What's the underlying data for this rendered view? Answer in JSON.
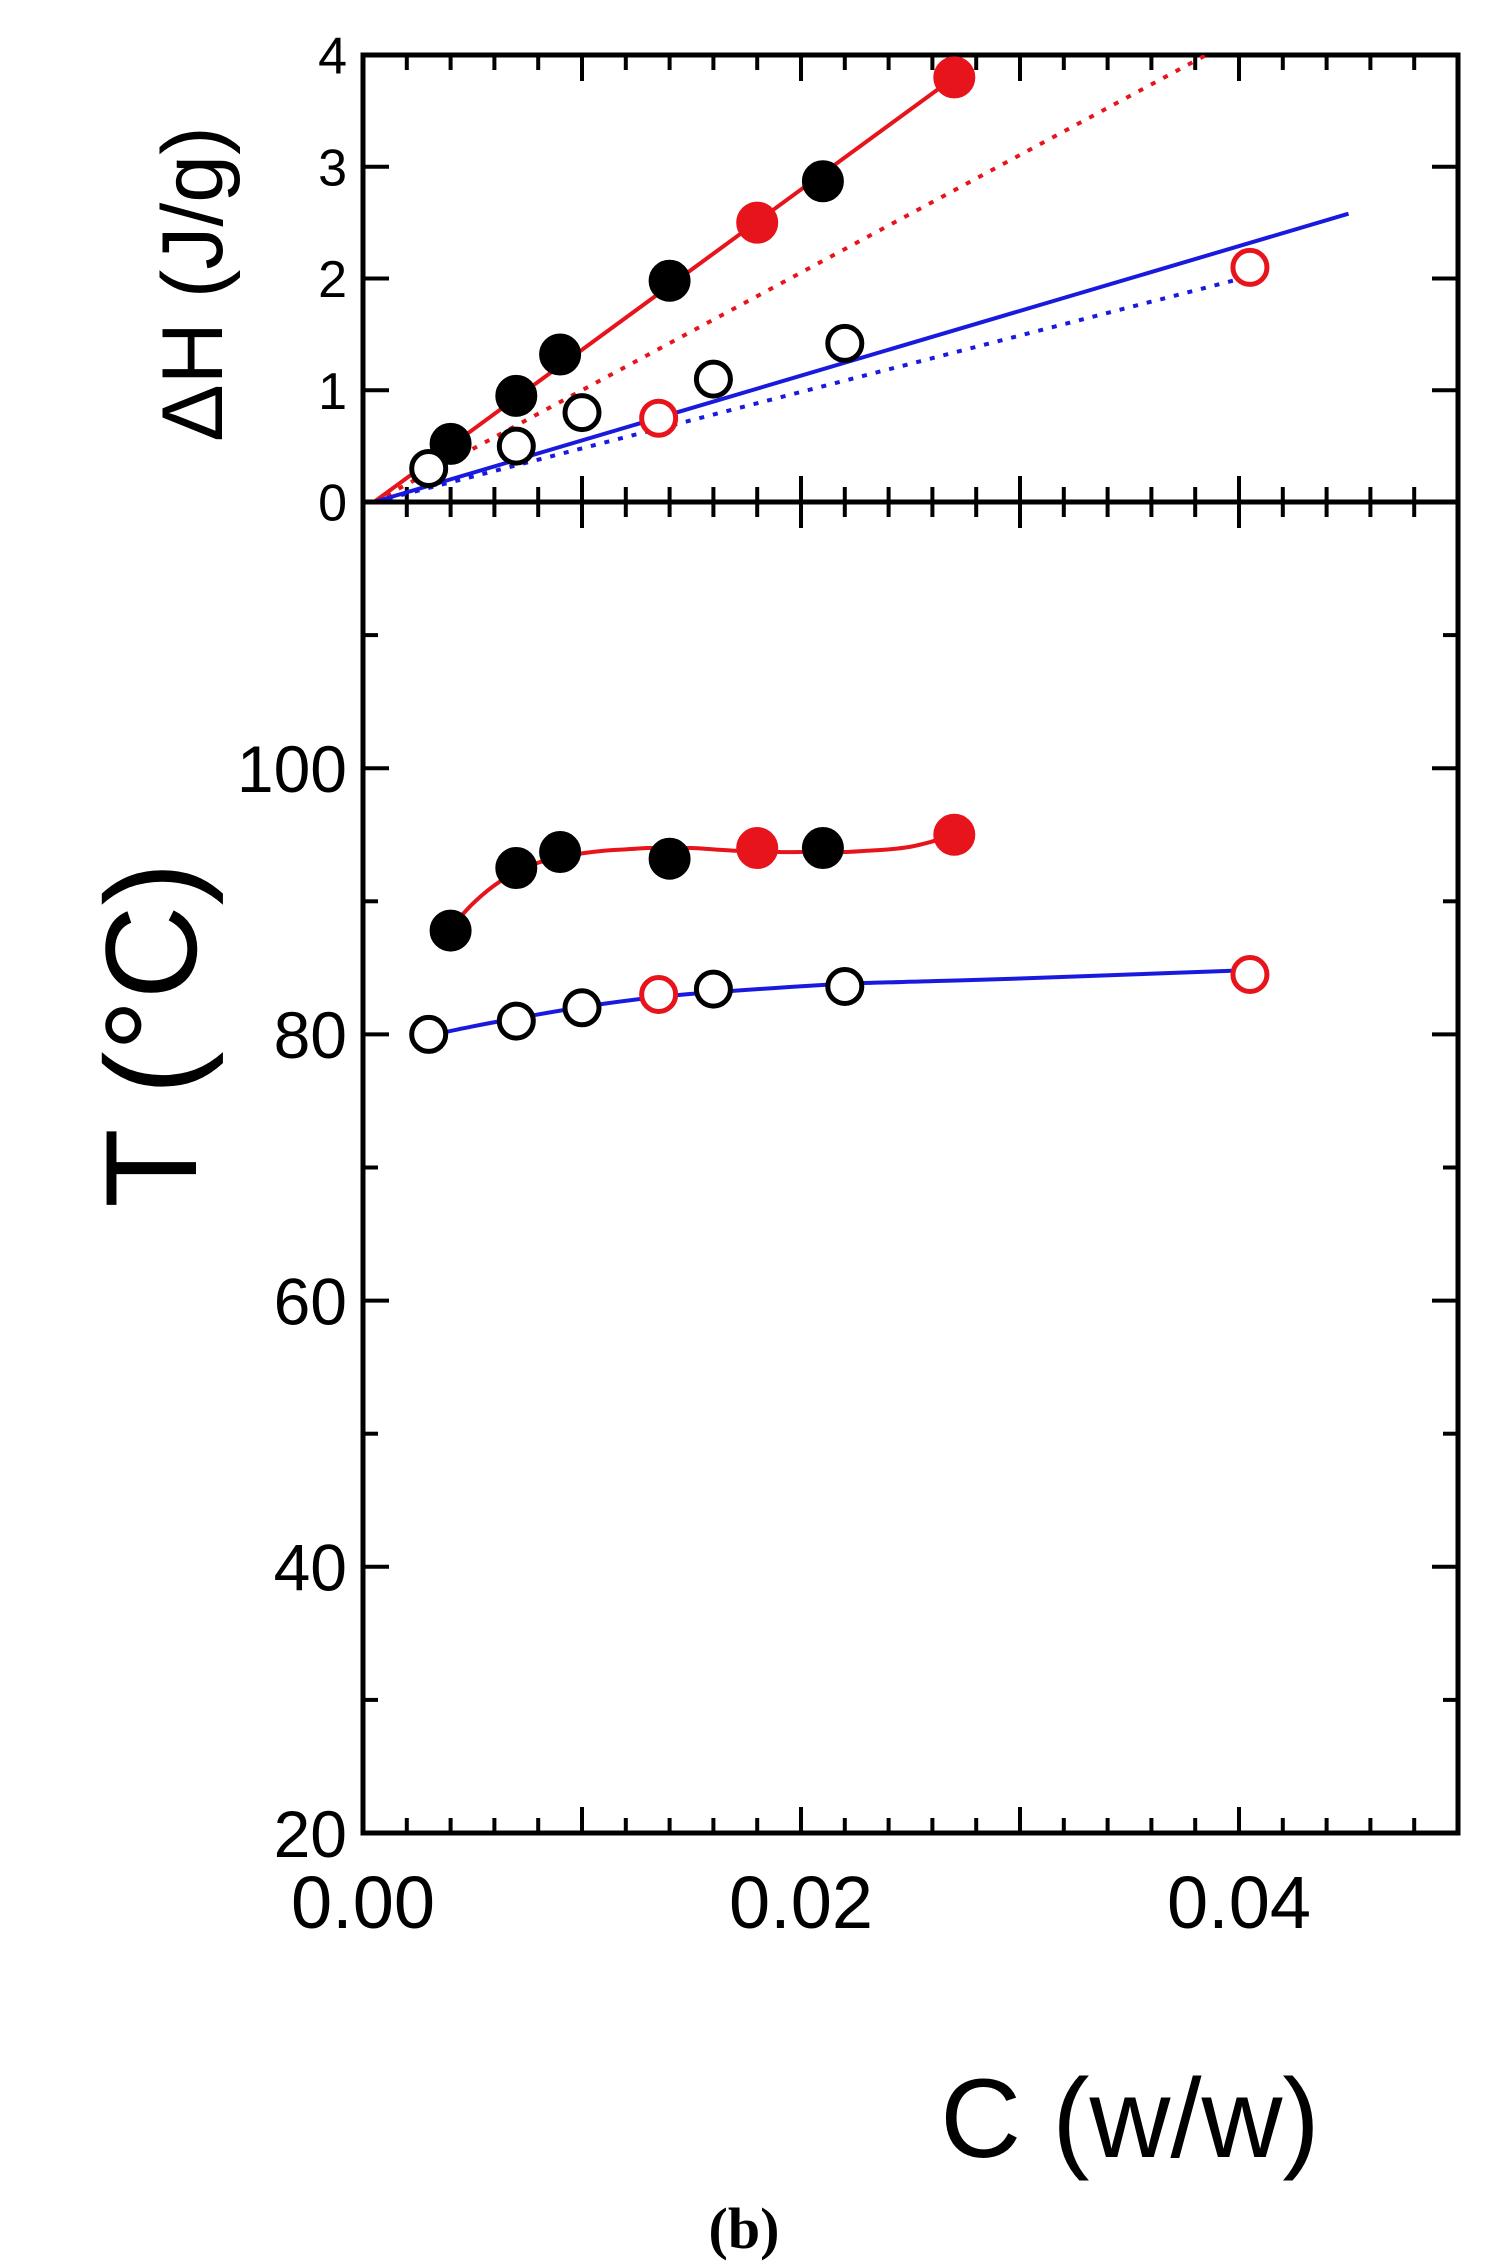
{
  "colors": {
    "black": "#000000",
    "red": "#e8141c",
    "blue": "#1a1adf",
    "marker_red": "#e8141c"
  },
  "chart_data": [
    {
      "type": "scatter",
      "panel": "top",
      "xlabel": "",
      "ylabel": "ΔH (J/g)",
      "xlim": [
        0,
        0.05
      ],
      "ylim": [
        0,
        4
      ],
      "yticks": [
        "0",
        "1",
        "2",
        "3",
        "4"
      ],
      "series": [
        {
          "name": "filled-black",
          "marker": "filled",
          "color": "#000000",
          "x": [
            0.004,
            0.007,
            0.009,
            0.014,
            0.021
          ],
          "y": [
            0.52,
            0.95,
            1.32,
            1.98,
            2.87
          ]
        },
        {
          "name": "filled-red",
          "marker": "filled",
          "color": "#e8141c",
          "x": [
            0.018,
            0.027
          ],
          "y": [
            2.5,
            3.8
          ]
        },
        {
          "name": "open-black",
          "marker": "open",
          "color": "#000000",
          "x": [
            0.003,
            0.007,
            0.01,
            0.016,
            0.022
          ],
          "y": [
            0.3,
            0.5,
            0.8,
            1.1,
            1.42
          ]
        },
        {
          "name": "open-red",
          "marker": "open",
          "color": "#e8141c",
          "x": [
            0.0135,
            0.0405
          ],
          "y": [
            0.75,
            2.1
          ]
        }
      ],
      "lines": [
        {
          "name": "red-solid-fit",
          "color": "#e8141c",
          "style": "solid",
          "x": [
            0.0005,
            0.027
          ],
          "y": [
            0.0,
            3.8
          ]
        },
        {
          "name": "red-dotted-fit",
          "color": "#e8141c",
          "style": "dotted",
          "x": [
            0.0005,
            0.0385
          ],
          "y": [
            0.0,
            4.0
          ]
        },
        {
          "name": "blue-solid-fit",
          "color": "#1a1adf",
          "style": "solid",
          "x": [
            0.0005,
            0.045
          ],
          "y": [
            0.0,
            2.58
          ]
        },
        {
          "name": "blue-dotted-fit",
          "color": "#1a1adf",
          "style": "dotted",
          "x": [
            0.0005,
            0.0405
          ],
          "y": [
            0.0,
            2.02
          ]
        }
      ]
    },
    {
      "type": "scatter",
      "panel": "bottom",
      "xlabel": "C (w/w)",
      "ylabel": "T (°C)",
      "xlim": [
        0,
        0.05
      ],
      "ylim": [
        20,
        120
      ],
      "xticks": [
        "0.00",
        "0.02",
        "0.04"
      ],
      "yticks": [
        "20",
        "40",
        "60",
        "80",
        "100"
      ],
      "series": [
        {
          "name": "filled-black",
          "marker": "filled",
          "color": "#000000",
          "x": [
            0.004,
            0.007,
            0.009,
            0.014,
            0.021
          ],
          "y": [
            87.8,
            92.5,
            93.7,
            93.2,
            94.0
          ]
        },
        {
          "name": "filled-red",
          "marker": "filled",
          "color": "#e8141c",
          "x": [
            0.018,
            0.027
          ],
          "y": [
            94.0,
            95.0
          ]
        },
        {
          "name": "open-black",
          "marker": "open",
          "color": "#000000",
          "x": [
            0.003,
            0.007,
            0.01,
            0.016,
            0.022
          ],
          "y": [
            80.0,
            81.0,
            82.0,
            83.4,
            83.6
          ]
        },
        {
          "name": "open-red",
          "marker": "open",
          "color": "#e8141c",
          "x": [
            0.0135,
            0.0405
          ],
          "y": [
            83.0,
            84.5
          ]
        }
      ],
      "curves": [
        {
          "name": "red-fit-curve",
          "color": "#e8141c",
          "x": [
            0.004,
            0.005,
            0.006,
            0.007,
            0.008,
            0.009,
            0.01,
            0.011,
            0.012,
            0.013,
            0.014,
            0.015,
            0.016,
            0.017,
            0.018,
            0.019,
            0.02,
            0.021,
            0.022,
            0.023,
            0.024,
            0.025,
            0.026,
            0.027
          ],
          "y": [
            88.0,
            89.8,
            91.2,
            92.2,
            92.9,
            93.3,
            93.6,
            93.8,
            93.9,
            94.0,
            94.0,
            94.0,
            93.9,
            93.8,
            93.8,
            93.7,
            93.7,
            93.7,
            93.7,
            93.8,
            93.9,
            94.1,
            94.5,
            95.0
          ]
        },
        {
          "name": "blue-fit-curve",
          "color": "#1a1adf",
          "x": [
            0.003,
            0.005,
            0.008,
            0.011,
            0.014,
            0.018,
            0.022,
            0.026,
            0.03,
            0.035,
            0.04
          ],
          "y": [
            79.9,
            80.6,
            81.5,
            82.3,
            82.9,
            83.4,
            83.8,
            84.0,
            84.2,
            84.5,
            84.8
          ]
        }
      ]
    }
  ],
  "caption": "(b)"
}
